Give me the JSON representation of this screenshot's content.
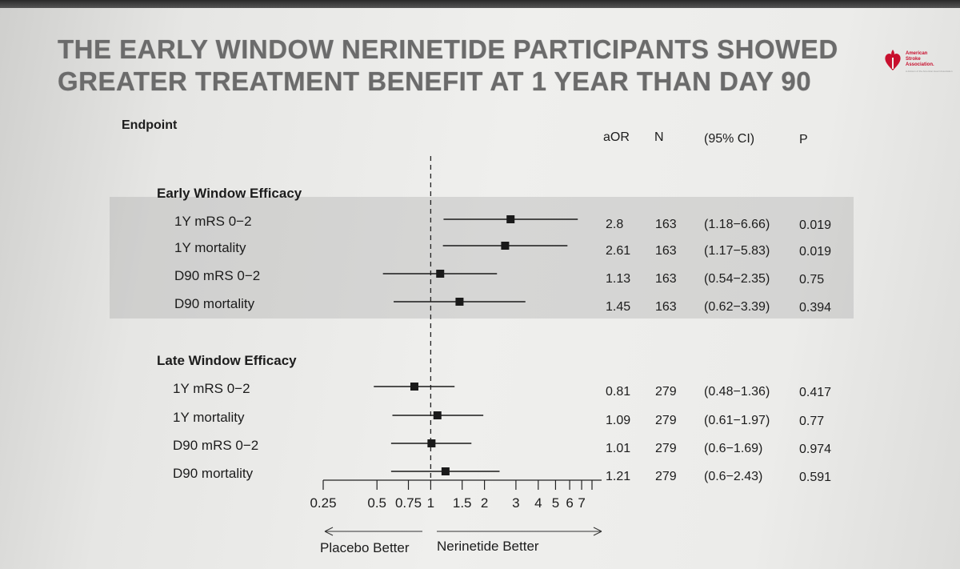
{
  "title_lines": [
    "THE EARLY WINDOW NERINETIDE  PARTICIPANTS SHOWED",
    "GREATER TREATMENT BENEFIT AT 1 YEAR THAN DAY 90"
  ],
  "logo": {
    "name_lines": [
      "American",
      "Stroke",
      "Association."
    ],
    "tagline": "A division of the American Heart Association"
  },
  "table_header": {
    "endpoint": "Endpoint",
    "aor": "aOR",
    "n": "N",
    "ci": "(95% CI)",
    "p": "P"
  },
  "chart_data": {
    "type": "forest",
    "x_scale": "log",
    "xlim": [
      0.25,
      8
    ],
    "reference_line": 1,
    "x_ticks": [
      {
        "value": 0.25,
        "label": "0.25"
      },
      {
        "value": 0.5,
        "label": "0.5"
      },
      {
        "value": 0.75,
        "label": "0.75"
      },
      {
        "value": 1,
        "label": "1"
      },
      {
        "value": 1.5,
        "label": "1.5"
      },
      {
        "value": 2,
        "label": "2"
      },
      {
        "value": 3,
        "label": "3"
      },
      {
        "value": 4,
        "label": "4"
      },
      {
        "value": 5,
        "label": "5"
      },
      {
        "value": 6,
        "label": "6"
      },
      {
        "value": 7,
        "label": "7"
      },
      {
        "value": 8,
        "label": ""
      }
    ],
    "direction_labels": {
      "left": "Placebo Better",
      "right": "Nerinetide Better"
    },
    "groups": [
      {
        "label": "Early Window Efficacy",
        "shaded": true,
        "rows": [
          {
            "endpoint": "1Y mRS 0−2",
            "aor": 2.8,
            "aor_text": "2.8",
            "n": "163",
            "lo": 1.18,
            "hi": 6.66,
            "ci_text": "(1.18−6.66)",
            "p": "0.019"
          },
          {
            "endpoint": "1Y mortality",
            "aor": 2.61,
            "aor_text": "2.61",
            "n": "163",
            "lo": 1.17,
            "hi": 5.83,
            "ci_text": "(1.17−5.83)",
            "p": "0.019"
          },
          {
            "endpoint": "D90 mRS 0−2",
            "aor": 1.13,
            "aor_text": "1.13",
            "n": "163",
            "lo": 0.54,
            "hi": 2.35,
            "ci_text": "(0.54−2.35)",
            "p": "0.75"
          },
          {
            "endpoint": "D90 mortality",
            "aor": 1.45,
            "aor_text": "1.45",
            "n": "163",
            "lo": 0.62,
            "hi": 3.39,
            "ci_text": "(0.62−3.39)",
            "p": "0.394"
          }
        ]
      },
      {
        "label": "Late Window Efficacy",
        "shaded": false,
        "rows": [
          {
            "endpoint": "1Y mRS 0−2",
            "aor": 0.81,
            "aor_text": "0.81",
            "n": "279",
            "lo": 0.48,
            "hi": 1.36,
            "ci_text": "(0.48−1.36)",
            "p": "0.417"
          },
          {
            "endpoint": "1Y mortality",
            "aor": 1.09,
            "aor_text": "1.09",
            "n": "279",
            "lo": 0.61,
            "hi": 1.97,
            "ci_text": "(0.61−1.97)",
            "p": "0.77"
          },
          {
            "endpoint": "D90 mRS 0−2",
            "aor": 1.01,
            "aor_text": "1.01",
            "n": "279",
            "lo": 0.6,
            "hi": 1.69,
            "ci_text": "(0.6−1.69)",
            "p": "0.974"
          },
          {
            "endpoint": "D90 mortality",
            "aor": 1.21,
            "aor_text": "1.21",
            "n": "279",
            "lo": 0.6,
            "hi": 2.43,
            "ci_text": "(0.6−2.43)",
            "p": "0.591"
          }
        ]
      }
    ]
  },
  "colors": {
    "marker": "#1a1a1a",
    "line": "#1a1a1a",
    "shade": "#a8a8a8",
    "title": "#6b6b6b",
    "logo_red": "#c8102e"
  }
}
